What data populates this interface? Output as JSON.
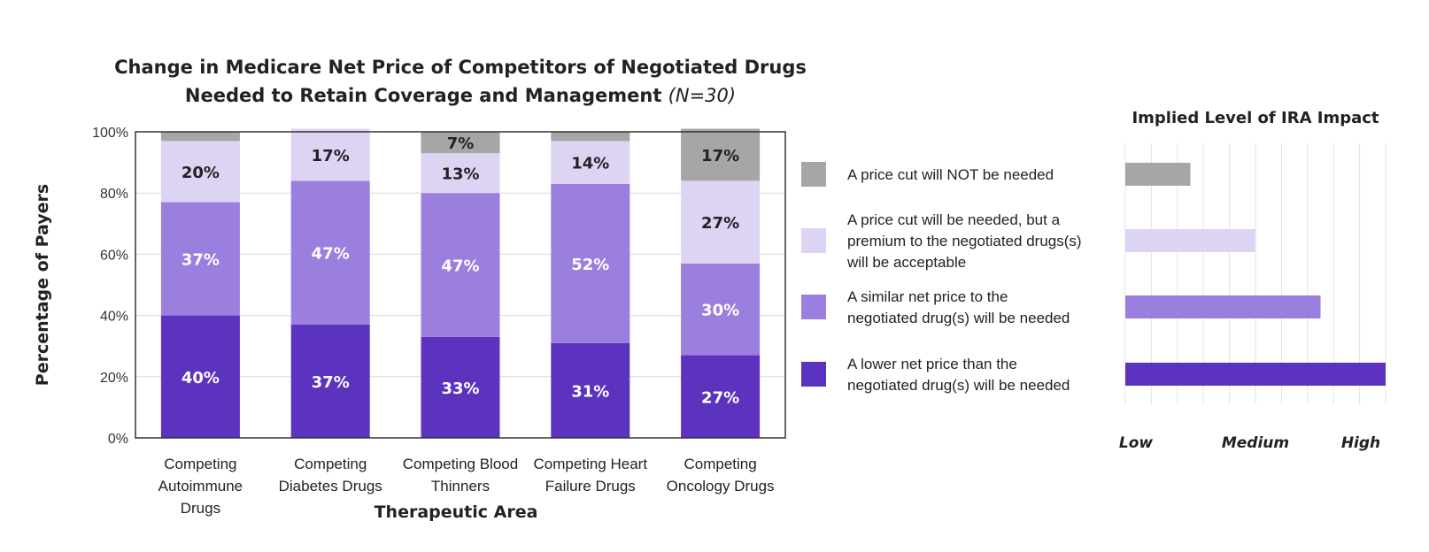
{
  "chart_data": [
    {
      "type": "bar",
      "stacked": true,
      "title_line1": "Change in Medicare Net Price of Competitors of Negotiated Drugs",
      "title_line2": "Needed to Retain Coverage and Management",
      "title_note": "(N=30)",
      "xlabel": "Therapeutic Area",
      "ylabel": "Percentage of Payers",
      "ylim": [
        0,
        100
      ],
      "yticks": [
        "0%",
        "20%",
        "40%",
        "60%",
        "80%",
        "100%"
      ],
      "categories": [
        [
          "Competing",
          "Autoimmune",
          "Drugs"
        ],
        [
          "Competing",
          "Diabetes Drugs"
        ],
        [
          "Competing Blood",
          "Thinners"
        ],
        [
          "Competing Heart",
          "Failure Drugs"
        ],
        [
          "Competing",
          "Oncology Drugs"
        ]
      ],
      "series": [
        {
          "name": "A lower net price than the negotiated drug(s) will be needed",
          "color": "#5b33bf",
          "values": [
            40,
            37,
            33,
            31,
            27
          ],
          "labels": [
            "40%",
            "37%",
            "33%",
            "31%",
            "27%"
          ]
        },
        {
          "name": "A similar net price to the negotiated drug(s) will be needed",
          "color": "#9b7fde",
          "values": [
            37,
            47,
            47,
            52,
            30
          ],
          "labels": [
            "37%",
            "47%",
            "47%",
            "52%",
            "30%"
          ]
        },
        {
          "name": "A price cut will be needed, but a premium to the negotiated drugs(s) will be acceptable",
          "color": "#ddd4f4",
          "values": [
            20,
            17,
            13,
            14,
            27
          ],
          "labels": [
            "20%",
            "17%",
            "13%",
            "14%",
            "27%"
          ]
        },
        {
          "name": "A price cut will NOT be needed",
          "color": "#a6a6a6",
          "values": [
            3,
            0,
            7,
            3,
            17
          ],
          "labels": [
            "",
            "",
            "7%",
            "",
            "17%"
          ]
        }
      ],
      "grid": true
    },
    {
      "type": "bar",
      "orientation": "horizontal",
      "title": "Implied Level of IRA Impact",
      "scale_labels": [
        "Low",
        "Medium",
        "High"
      ],
      "legend": [
        {
          "lines": [
            "A price cut will NOT be needed"
          ],
          "color": "#a6a6a6"
        },
        {
          "lines": [
            "A price cut will be needed, but a",
            "premium to the negotiated drugs(s)",
            "will be acceptable"
          ],
          "color": "#ddd4f4"
        },
        {
          "lines": [
            "A similar net price to the",
            "negotiated drug(s) will be needed"
          ],
          "color": "#9b7fde"
        },
        {
          "lines": [
            "A lower net price than the",
            "negotiated drug(s) will be needed"
          ],
          "color": "#5b33bf"
        }
      ],
      "values": [
        0.25,
        0.5,
        0.75,
        1.0
      ]
    }
  ]
}
